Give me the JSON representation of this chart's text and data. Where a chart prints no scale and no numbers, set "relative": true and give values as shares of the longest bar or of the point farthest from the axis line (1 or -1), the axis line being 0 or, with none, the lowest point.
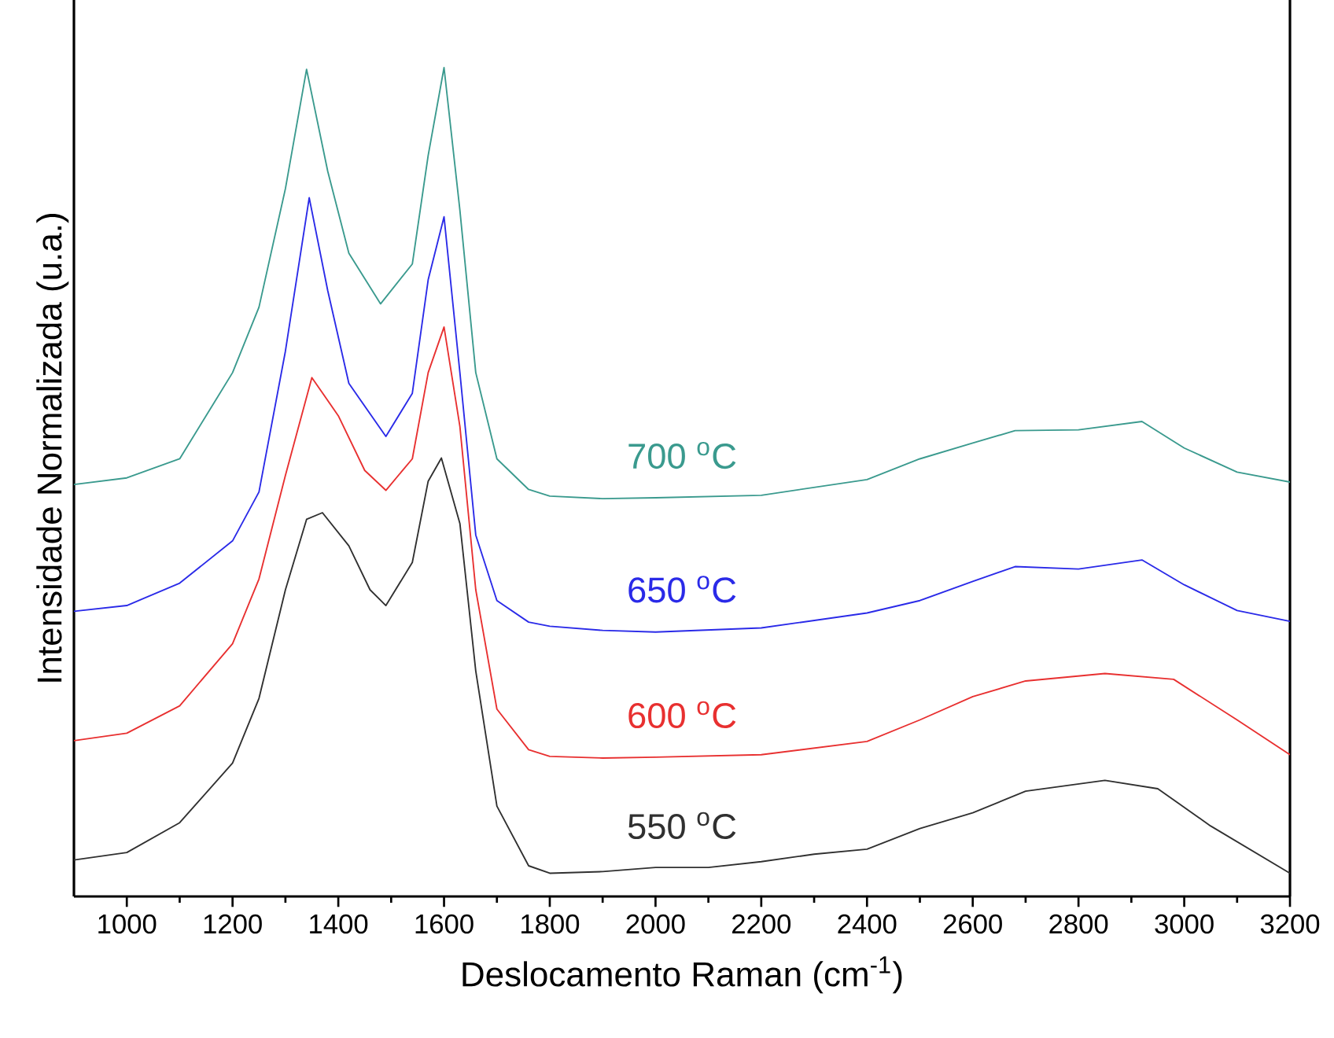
{
  "chart_data": {
    "type": "line",
    "relative": true,
    "xlabel": "Deslocamento Raman (cm$^{-1}$)",
    "ylabel": "Intensidade Normalizada (u.a.)",
    "xlim": [
      900,
      3200
    ],
    "xticks": [
      1000,
      1200,
      1400,
      1600,
      1800,
      2000,
      2200,
      2400,
      2600,
      2800,
      3000,
      3200
    ],
    "grid": false,
    "legend": false,
    "marker": "none",
    "line_style": "solid",
    "series": [
      {
        "name": "550 $^{o}$C",
        "color": "#303030",
        "x": [
          900,
          1000,
          1100,
          1200,
          1250,
          1300,
          1340,
          1370,
          1420,
          1460,
          1490,
          1540,
          1570,
          1595,
          1630,
          1660,
          1700,
          1760,
          1800,
          1900,
          2000,
          2100,
          2200,
          2300,
          2400,
          2500,
          2600,
          2700,
          2850,
          2950,
          3050,
          3200
        ],
        "values": [
          0.044,
          0.053,
          0.089,
          0.161,
          0.239,
          0.37,
          0.455,
          0.463,
          0.423,
          0.37,
          0.351,
          0.403,
          0.501,
          0.529,
          0.45,
          0.272,
          0.109,
          0.037,
          0.028,
          0.03,
          0.035,
          0.035,
          0.042,
          0.051,
          0.057,
          0.082,
          0.101,
          0.127,
          0.14,
          0.13,
          0.085,
          0.028
        ]
      },
      {
        "name": "600 $^{o}$C",
        "color": "#e83030",
        "x": [
          900,
          1000,
          1100,
          1200,
          1250,
          1300,
          1350,
          1400,
          1450,
          1490,
          1540,
          1570,
          1600,
          1630,
          1660,
          1700,
          1760,
          1800,
          1900,
          2000,
          2200,
          2400,
          2500,
          2600,
          2700,
          2850,
          2980,
          3100,
          3200
        ],
        "values": [
          0.188,
          0.197,
          0.23,
          0.305,
          0.383,
          0.508,
          0.626,
          0.58,
          0.514,
          0.49,
          0.528,
          0.632,
          0.687,
          0.567,
          0.37,
          0.226,
          0.177,
          0.169,
          0.167,
          0.168,
          0.171,
          0.187,
          0.213,
          0.241,
          0.26,
          0.269,
          0.262,
          0.213,
          0.171
        ]
      },
      {
        "name": "650 $^{o}$C",
        "color": "#2a2ae8",
        "x": [
          900,
          1000,
          1100,
          1200,
          1250,
          1300,
          1345,
          1380,
          1420,
          1490,
          1540,
          1570,
          1600,
          1630,
          1660,
          1700,
          1760,
          1800,
          1900,
          2000,
          2200,
          2400,
          2500,
          2600,
          2680,
          2800,
          2920,
          3000,
          3100,
          3200
        ],
        "values": [
          0.344,
          0.351,
          0.378,
          0.429,
          0.488,
          0.658,
          0.843,
          0.731,
          0.619,
          0.555,
          0.607,
          0.744,
          0.82,
          0.632,
          0.436,
          0.357,
          0.331,
          0.326,
          0.321,
          0.319,
          0.324,
          0.342,
          0.357,
          0.38,
          0.398,
          0.395,
          0.406,
          0.376,
          0.345,
          0.332
        ]
      },
      {
        "name": "700 $^{o}$C",
        "color": "#3a9a8e",
        "x": [
          900,
          1000,
          1100,
          1200,
          1250,
          1300,
          1340,
          1380,
          1420,
          1480,
          1540,
          1570,
          1600,
          1630,
          1660,
          1700,
          1760,
          1800,
          1900,
          2000,
          2200,
          2400,
          2500,
          2600,
          2680,
          2800,
          2920,
          3000,
          3100,
          3200
        ],
        "values": [
          0.497,
          0.505,
          0.528,
          0.632,
          0.711,
          0.854,
          0.998,
          0.875,
          0.776,
          0.715,
          0.763,
          0.894,
          1.0,
          0.828,
          0.632,
          0.528,
          0.491,
          0.483,
          0.48,
          0.481,
          0.484,
          0.503,
          0.528,
          0.547,
          0.562,
          0.563,
          0.573,
          0.541,
          0.512,
          0.5
        ]
      }
    ]
  }
}
